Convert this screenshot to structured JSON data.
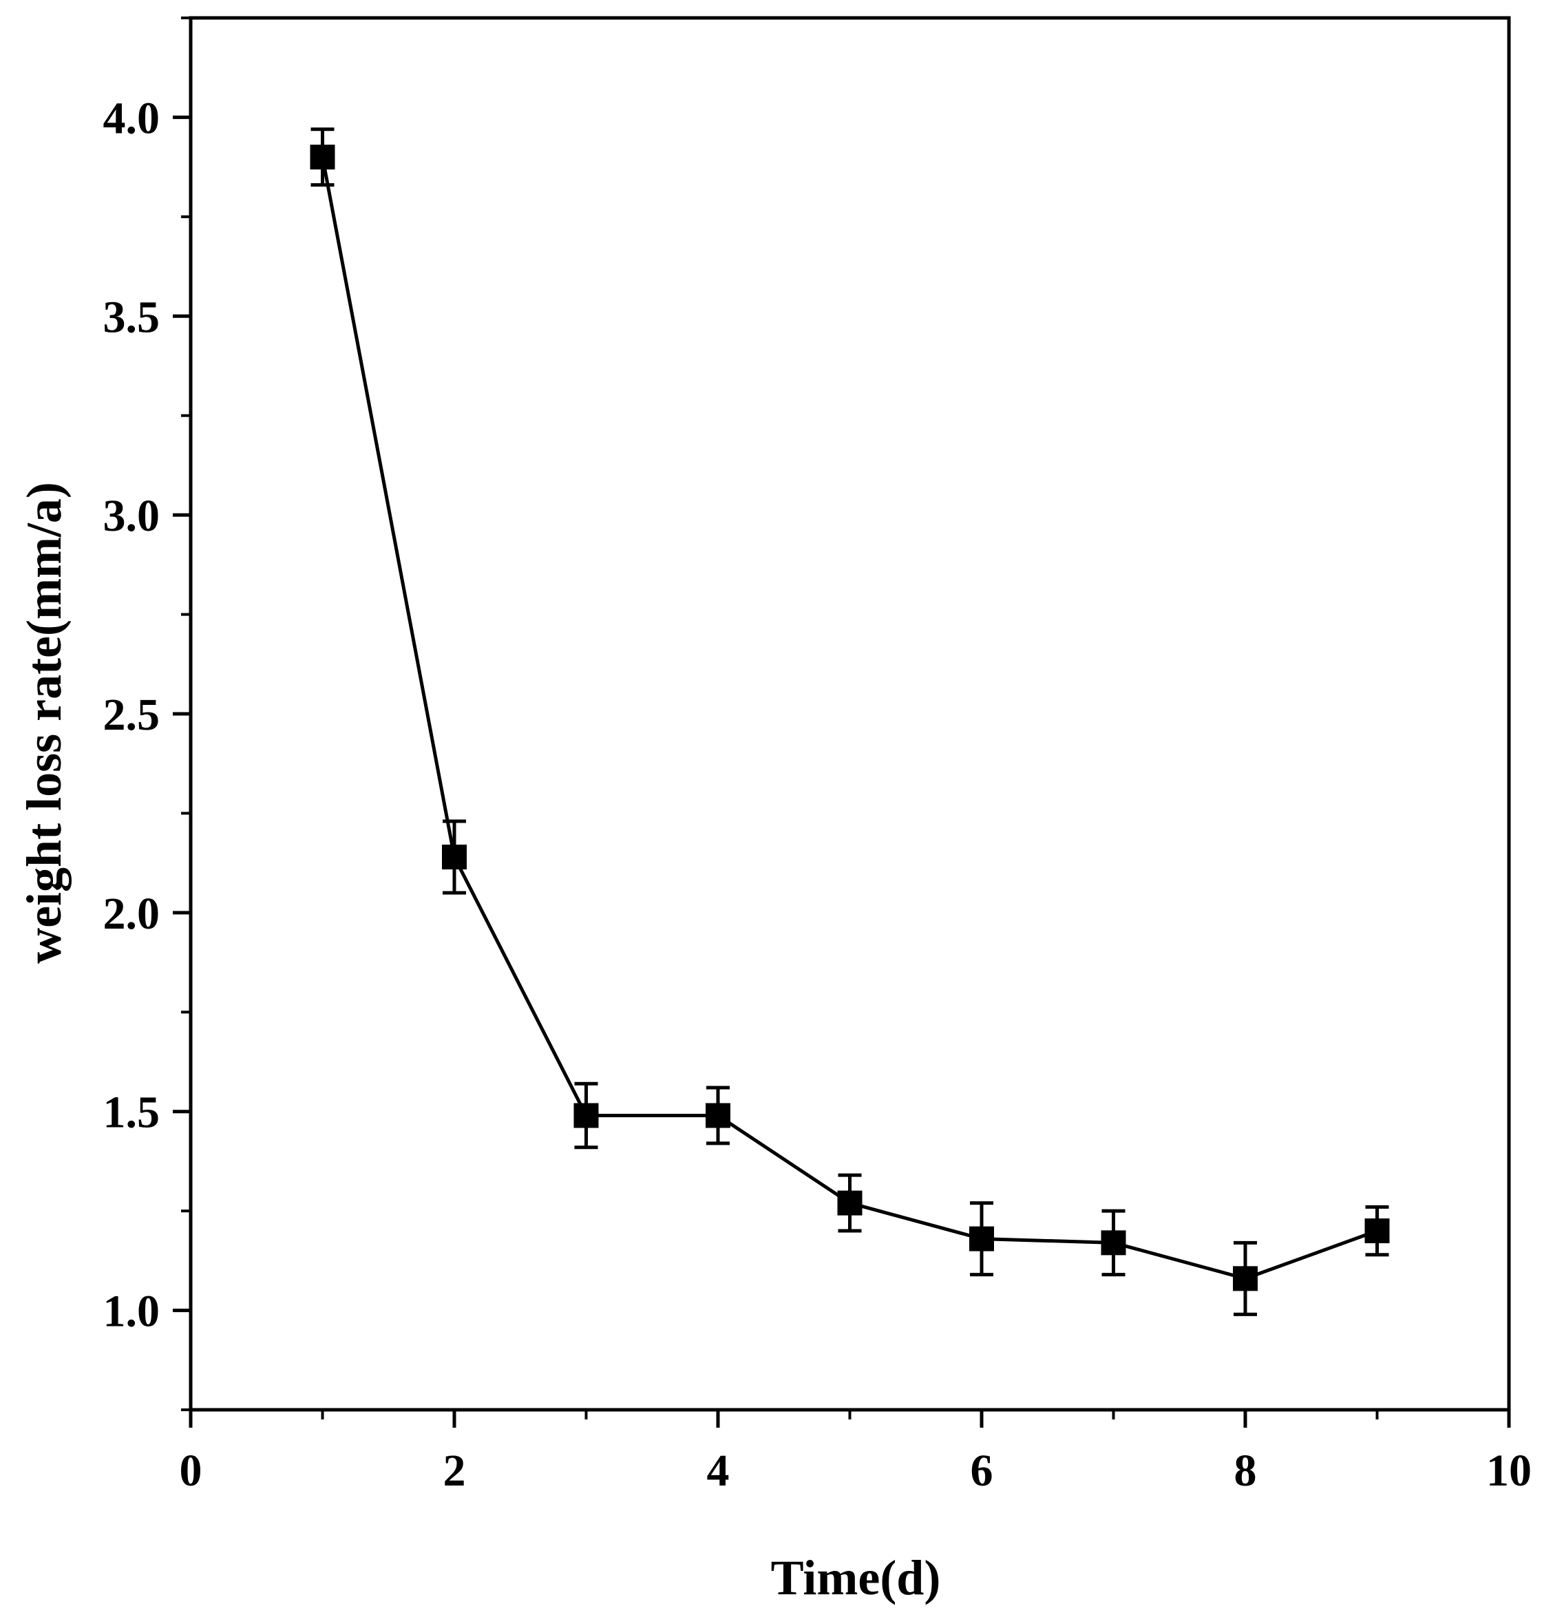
{
  "chart_data": {
    "type": "line",
    "title": "",
    "xlabel": "Time(d)",
    "ylabel": "weight loss rate(mm/a)",
    "xlim": [
      0,
      10
    ],
    "ylim": [
      0.75,
      4.25
    ],
    "x_ticks": [
      0,
      2,
      4,
      6,
      8,
      10
    ],
    "x_tick_labels": [
      "0",
      "2",
      "4",
      "6",
      "8",
      "10"
    ],
    "x_minor_ticks": [
      1,
      3,
      5,
      7,
      9
    ],
    "y_ticks": [
      1.0,
      1.5,
      2.0,
      2.5,
      3.0,
      3.5,
      4.0
    ],
    "y_tick_labels": [
      "1.0",
      "1.5",
      "2.0",
      "2.5",
      "3.0",
      "3.5",
      "4.0"
    ],
    "y_minor_ticks": [
      0.75,
      1.25,
      1.75,
      2.25,
      2.75,
      3.25,
      3.75,
      4.25
    ],
    "grid": false,
    "legend": "none",
    "series": [
      {
        "name": "weight loss rate",
        "marker": "square",
        "color": "#000000",
        "x": [
          1,
          2,
          3,
          4,
          5,
          6,
          7,
          8,
          9
        ],
        "y": [
          3.9,
          2.14,
          1.49,
          1.49,
          1.27,
          1.18,
          1.17,
          1.08,
          1.2
        ],
        "error": [
          0.07,
          0.09,
          0.08,
          0.07,
          0.07,
          0.09,
          0.08,
          0.09,
          0.06
        ]
      }
    ]
  }
}
